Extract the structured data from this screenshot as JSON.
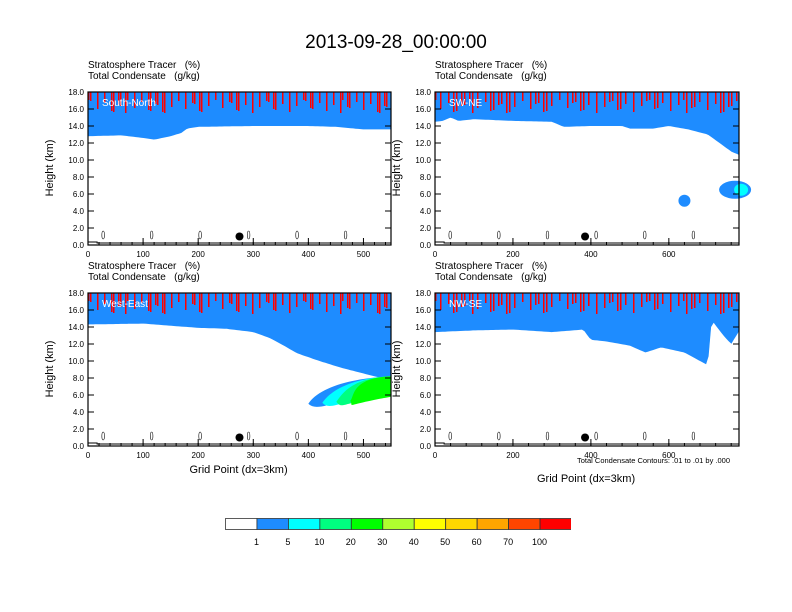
{
  "title": "2013-09-28_00:00:00",
  "chart_data": [
    {
      "type": "heatmap",
      "panel_label": "South-North",
      "subtitle_lines": [
        "Stratosphere Tracer   (%)",
        "Total Condensate   (g/kg)"
      ],
      "ylabel": "Height (km)",
      "xlabel": "",
      "xlim": [
        0,
        550
      ],
      "ylim": [
        0,
        18
      ],
      "xticks": [
        0,
        100,
        200,
        300,
        400,
        500
      ],
      "yticks": [
        "0.0",
        "2.0",
        "4.0",
        "6.0",
        "8.0",
        "10.0",
        "12.0",
        "14.0",
        "16.0",
        "18.0"
      ],
      "tracer_base_km": [
        [
          0,
          12.8
        ],
        [
          60,
          12.9
        ],
        [
          100,
          12.6
        ],
        [
          120,
          12.4
        ],
        [
          150,
          12.8
        ],
        [
          170,
          13.2
        ],
        [
          180,
          13.7
        ],
        [
          200,
          13.9
        ],
        [
          300,
          14.0
        ],
        [
          400,
          14.0
        ],
        [
          450,
          13.9
        ],
        [
          500,
          13.6
        ],
        [
          550,
          13.6
        ]
      ],
      "marker_x": 275,
      "marker_y_km": 1.0
    },
    {
      "type": "heatmap",
      "panel_label": "SW-NE",
      "subtitle_lines": [
        "Stratosphere Tracer   (%)",
        "Total Condensate   (g/kg)"
      ],
      "ylabel": "Height (km)",
      "xlabel": "",
      "xlim": [
        0,
        780
      ],
      "ylim": [
        0,
        18
      ],
      "xticks": [
        0,
        200,
        400,
        600
      ],
      "yticks": [
        "0.0",
        "2.0",
        "4.0",
        "6.0",
        "8.0",
        "10.0",
        "12.0",
        "14.0",
        "16.0",
        "18.0"
      ],
      "tracer_base_km": [
        [
          0,
          14.5
        ],
        [
          20,
          14.6
        ],
        [
          40,
          15.0
        ],
        [
          60,
          14.6
        ],
        [
          100,
          14.8
        ],
        [
          200,
          14.6
        ],
        [
          300,
          14.5
        ],
        [
          330,
          13.9
        ],
        [
          400,
          14.0
        ],
        [
          480,
          14.0
        ],
        [
          500,
          13.7
        ],
        [
          560,
          13.7
        ],
        [
          600,
          14.0
        ],
        [
          650,
          13.6
        ],
        [
          700,
          13.0
        ],
        [
          730,
          12.0
        ],
        [
          760,
          11.0
        ],
        [
          780,
          10.6
        ]
      ],
      "blobs": [
        [
          640,
          5.2
        ],
        [
          770,
          6.5
        ]
      ],
      "marker_x": 385,
      "marker_y_km": 1.0
    },
    {
      "type": "heatmap",
      "panel_label": "West-East",
      "subtitle_lines": [
        "Stratosphere Tracer   (%)",
        "Total Condensate   (g/kg)"
      ],
      "ylabel": "Height (km)",
      "xlabel": "Grid Point (dx=3km)",
      "xlim": [
        0,
        550
      ],
      "ylim": [
        0,
        18
      ],
      "xticks": [
        0,
        100,
        200,
        300,
        400,
        500
      ],
      "yticks": [
        "0.0",
        "2.0",
        "4.0",
        "6.0",
        "8.0",
        "10.0",
        "12.0",
        "14.0",
        "16.0",
        "18.0"
      ],
      "tracer_base_km": [
        [
          0,
          14.3
        ],
        [
          100,
          14.4
        ],
        [
          200,
          13.9
        ],
        [
          250,
          13.8
        ],
        [
          300,
          13.4
        ],
        [
          330,
          12.7
        ],
        [
          350,
          12.0
        ],
        [
          380,
          10.9
        ],
        [
          420,
          10.0
        ],
        [
          460,
          9.2
        ],
        [
          520,
          8.2
        ],
        [
          550,
          7.8
        ]
      ],
      "intrusion": {
        "tip_x": 400,
        "tip_y_km": 5.2
      },
      "marker_x": 275,
      "marker_y_km": 1.0
    },
    {
      "type": "heatmap",
      "panel_label": "NW-SE",
      "subtitle_lines": [
        "Stratosphere Tracer   (%)",
        "Total Condensate   (g/kg)"
      ],
      "ylabel": "Height (km)",
      "xlabel": "Grid Point (dx=3km)",
      "xlim": [
        0,
        780
      ],
      "ylim": [
        0,
        18
      ],
      "xticks": [
        0,
        200,
        400,
        600
      ],
      "yticks": [
        "0.0",
        "2.0",
        "4.0",
        "6.0",
        "8.0",
        "10.0",
        "12.0",
        "14.0",
        "16.0",
        "18.0"
      ],
      "tracer_base_km": [
        [
          0,
          13.4
        ],
        [
          100,
          13.6
        ],
        [
          200,
          13.7
        ],
        [
          300,
          13.4
        ],
        [
          380,
          13.7
        ],
        [
          400,
          12.5
        ],
        [
          440,
          12.3
        ],
        [
          500,
          11.8
        ],
        [
          540,
          11.0
        ],
        [
          580,
          11.6
        ],
        [
          640,
          11.0
        ],
        [
          700,
          9.5
        ],
        [
          710,
          14.8
        ],
        [
          740,
          13.0
        ],
        [
          760,
          12.0
        ],
        [
          780,
          13.5
        ]
      ],
      "marker_x": 385,
      "marker_y_km": 1.0
    }
  ],
  "contour_note": "Total Condensate Contours: .01 to .01 by .000",
  "colorbar": {
    "colors": [
      "#ffffff",
      "#1e8cff",
      "#00ffff",
      "#00ff80",
      "#00ff00",
      "#afff2f",
      "#ffff00",
      "#ffd700",
      "#ffa500",
      "#ff4500",
      "#ff0000"
    ],
    "labels": [
      "1",
      "5",
      "10",
      "20",
      "30",
      "40",
      "50",
      "60",
      "70",
      "100"
    ]
  }
}
